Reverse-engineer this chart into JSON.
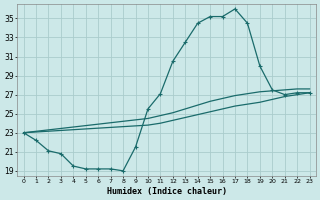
{
  "xlabel": "Humidex (Indice chaleur)",
  "xlim": [
    -0.5,
    23.5
  ],
  "ylim": [
    18.5,
    36.5
  ],
  "yticks": [
    19,
    21,
    23,
    25,
    27,
    29,
    31,
    33,
    35
  ],
  "xticks": [
    0,
    1,
    2,
    3,
    4,
    5,
    6,
    7,
    8,
    9,
    10,
    11,
    12,
    13,
    14,
    15,
    16,
    17,
    18,
    19,
    20,
    21,
    22,
    23
  ],
  "xtick_labels": [
    "0",
    "1",
    "2",
    "3",
    "4",
    "5",
    "6",
    "7",
    "8",
    "9",
    "10",
    "11",
    "12",
    "13",
    "14",
    "15",
    "16",
    "17",
    "18",
    "19",
    "20",
    "21",
    "22",
    "23"
  ],
  "bg_color": "#cce8e8",
  "grid_color": "#aacccc",
  "line_color": "#1a6b6b",
  "line1_x": [
    0,
    1,
    2,
    3,
    4,
    5,
    6,
    7,
    8,
    9,
    10,
    11,
    12,
    13,
    14,
    15,
    16,
    17,
    18,
    19,
    20,
    21,
    22,
    23
  ],
  "line1_y": [
    23.0,
    22.2,
    21.1,
    20.8,
    19.5,
    19.2,
    19.2,
    19.2,
    19.0,
    21.5,
    25.5,
    27.1,
    30.5,
    32.5,
    34.5,
    35.2,
    35.2,
    36.0,
    34.5,
    30.0,
    27.5,
    27.0,
    27.2,
    27.2
  ],
  "line2_x": [
    0,
    10,
    11,
    12,
    13,
    14,
    15,
    16,
    17,
    18,
    19,
    20,
    21,
    22,
    23
  ],
  "line2_y": [
    23.0,
    24.5,
    24.8,
    25.1,
    25.5,
    25.9,
    26.3,
    26.6,
    26.9,
    27.1,
    27.3,
    27.4,
    27.5,
    27.6,
    27.6
  ],
  "line3_x": [
    0,
    10,
    11,
    12,
    13,
    14,
    15,
    16,
    17,
    18,
    19,
    20,
    21,
    22,
    23
  ],
  "line3_y": [
    23.0,
    23.8,
    24.0,
    24.3,
    24.6,
    24.9,
    25.2,
    25.5,
    25.8,
    26.0,
    26.2,
    26.5,
    26.8,
    27.0,
    27.2
  ]
}
